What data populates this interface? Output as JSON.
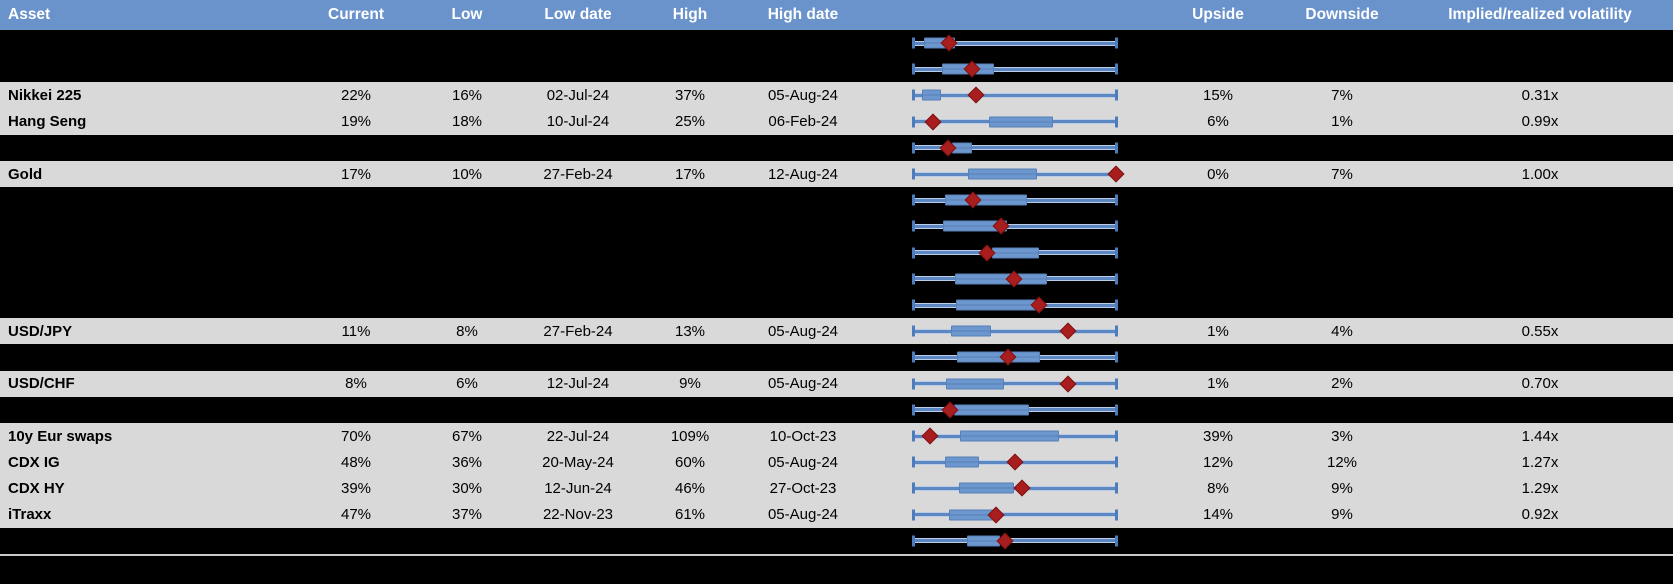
{
  "colors": {
    "header_bg": "#6A93CC",
    "header_text": "#FFFFFF",
    "row_bg": "#D9D9D9",
    "hidden_row_bg": "#000000",
    "body_text": "#000000",
    "box_fill": "#6C96CE",
    "box_border": "#5780B8",
    "whisker": "#5D87C1",
    "whisker_halo": "#BACDE8",
    "whisker_cap": "#4D7CBD",
    "marker": "#A81D1D",
    "separator": "#C9C9C9"
  },
  "chart_data": {
    "type": "table",
    "columns": {
      "asset": "Asset",
      "current": "Current",
      "low": "Low",
      "low_date": "Low date",
      "high": "High",
      "high_date": "High date",
      "upside": "Upside",
      "downside": "Downside",
      "implied_realized": "Implied/realized volatility"
    },
    "range_plot_legend": {
      "whisker": "full low-to-high range (normalized 0-1)",
      "box": "inner range band (blue box)",
      "marker": "current level (red diamond)"
    },
    "rows": [
      {
        "hidden": true,
        "asset": "",
        "current": "",
        "low": "",
        "low_date": "",
        "high": "",
        "high_date": "",
        "upside": "",
        "downside": "",
        "implied_realized": "",
        "box": [
          0.055,
          0.205
        ],
        "marker": 0.175
      },
      {
        "hidden": true,
        "asset": "",
        "current": "",
        "low": "",
        "low_date": "",
        "high": "",
        "high_date": "",
        "upside": "",
        "downside": "",
        "implied_realized": "",
        "box": [
          0.14,
          0.395
        ],
        "marker": 0.29
      },
      {
        "hidden": false,
        "asset": "Nikkei 225",
        "current": "22%",
        "low": "16%",
        "low_date": "02-Jul-24",
        "high": "37%",
        "high_date": "05-Aug-24",
        "upside": "15%",
        "downside": "7%",
        "implied_realized": "0.31x",
        "box": [
          0.046,
          0.139
        ],
        "marker": 0.307
      },
      {
        "hidden": false,
        "asset": "Hang Seng",
        "current": "19%",
        "low": "18%",
        "low_date": "10-Jul-24",
        "high": "25%",
        "high_date": "06-Feb-24",
        "upside": "6%",
        "downside": "1%",
        "implied_realized": "0.99x",
        "box": [
          0.37,
          0.685
        ],
        "marker": 0.098
      },
      {
        "hidden": true,
        "asset": "",
        "current": "",
        "low": "",
        "low_date": "",
        "high": "",
        "high_date": "",
        "upside": "",
        "downside": "",
        "implied_realized": "",
        "box": [
          0.19,
          0.29
        ],
        "marker": 0.17
      },
      {
        "hidden": false,
        "asset": "Gold",
        "current": "17%",
        "low": "10%",
        "low_date": "27-Feb-24",
        "high": "17%",
        "high_date": "12-Aug-24",
        "upside": "0%",
        "downside": "7%",
        "implied_realized": "1.00x",
        "box": [
          0.27,
          0.61
        ],
        "marker": 0.995
      },
      {
        "hidden": true,
        "asset": "",
        "current": "",
        "low": "",
        "low_date": "",
        "high": "",
        "high_date": "",
        "upside": "",
        "downside": "",
        "implied_realized": "",
        "box": [
          0.158,
          0.558
        ],
        "marker": 0.292
      },
      {
        "hidden": true,
        "asset": "",
        "current": "",
        "low": "",
        "low_date": "",
        "high": "",
        "high_date": "",
        "upside": "",
        "downside": "",
        "implied_realized": "",
        "box": [
          0.147,
          0.46
        ],
        "marker": 0.433
      },
      {
        "hidden": true,
        "asset": "",
        "current": "",
        "low": "",
        "low_date": "",
        "high": "",
        "high_date": "",
        "upside": "",
        "downside": "",
        "implied_realized": "",
        "box": [
          0.387,
          0.616
        ],
        "marker": 0.363
      },
      {
        "hidden": true,
        "asset": "",
        "current": "",
        "low": "",
        "low_date": "",
        "high": "",
        "high_date": "",
        "upside": "",
        "downside": "",
        "implied_realized": "",
        "box": [
          0.207,
          0.657
        ],
        "marker": 0.497
      },
      {
        "hidden": true,
        "asset": "",
        "current": "",
        "low": "",
        "low_date": "",
        "high": "",
        "high_date": "",
        "upside": "",
        "downside": "",
        "implied_realized": "",
        "box": [
          0.21,
          0.61
        ],
        "marker": 0.615
      },
      {
        "hidden": false,
        "asset": "USD/JPY",
        "current": "11%",
        "low": "8%",
        "low_date": "27-Feb-24",
        "high": "13%",
        "high_date": "05-Aug-24",
        "upside": "1%",
        "downside": "4%",
        "implied_realized": "0.55x",
        "box": [
          0.186,
          0.384
        ],
        "marker": 0.762
      },
      {
        "hidden": true,
        "asset": "",
        "current": "",
        "low": "",
        "low_date": "",
        "high": "",
        "high_date": "",
        "upside": "",
        "downside": "",
        "implied_realized": "",
        "box": [
          0.216,
          0.624
        ],
        "marker": 0.464
      },
      {
        "hidden": false,
        "asset": "USD/CHF",
        "current": "8%",
        "low": "6%",
        "low_date": "12-Jul-24",
        "high": "9%",
        "high_date": "05-Aug-24",
        "upside": "1%",
        "downside": "2%",
        "implied_realized": "0.70x",
        "box": [
          0.163,
          0.444
        ],
        "marker": 0.76
      },
      {
        "hidden": true,
        "asset": "",
        "current": "",
        "low": "",
        "low_date": "",
        "high": "",
        "high_date": "",
        "upside": "",
        "downside": "",
        "implied_realized": "",
        "box": [
          0.199,
          0.567
        ],
        "marker": 0.183
      },
      {
        "hidden": false,
        "asset": "10y Eur swaps",
        "current": "70%",
        "low": "67%",
        "low_date": "22-Jul-24",
        "high": "109%",
        "high_date": "10-Oct-23",
        "upside": "39%",
        "downside": "3%",
        "implied_realized": "1.44x",
        "box": [
          0.232,
          0.714
        ],
        "marker": 0.081
      },
      {
        "hidden": false,
        "asset": "CDX IG",
        "current": "48%",
        "low": "36%",
        "low_date": "20-May-24",
        "high": "60%",
        "high_date": "05-Aug-24",
        "upside": "12%",
        "downside": "12%",
        "implied_realized": "1.27x",
        "box": [
          0.158,
          0.325
        ],
        "marker": 0.5
      },
      {
        "hidden": false,
        "asset": "CDX HY",
        "current": "39%",
        "low": "30%",
        "low_date": "12-Jun-24",
        "high": "46%",
        "high_date": "27-Oct-23",
        "upside": "8%",
        "downside": "9%",
        "implied_realized": "1.29x",
        "box": [
          0.224,
          0.493
        ],
        "marker": 0.534
      },
      {
        "hidden": false,
        "asset": "iTraxx",
        "current": "47%",
        "low": "37%",
        "low_date": "22-Nov-23",
        "high": "61%",
        "high_date": "05-Aug-24",
        "upside": "14%",
        "downside": "9%",
        "implied_realized": "0.92x",
        "box": [
          0.175,
          0.395
        ],
        "marker": 0.407
      },
      {
        "hidden": true,
        "asset": "",
        "current": "",
        "low": "",
        "low_date": "",
        "high": "",
        "high_date": "",
        "upside": "",
        "downside": "",
        "implied_realized": "",
        "box": [
          0.265,
          0.428
        ],
        "marker": 0.453
      }
    ]
  }
}
